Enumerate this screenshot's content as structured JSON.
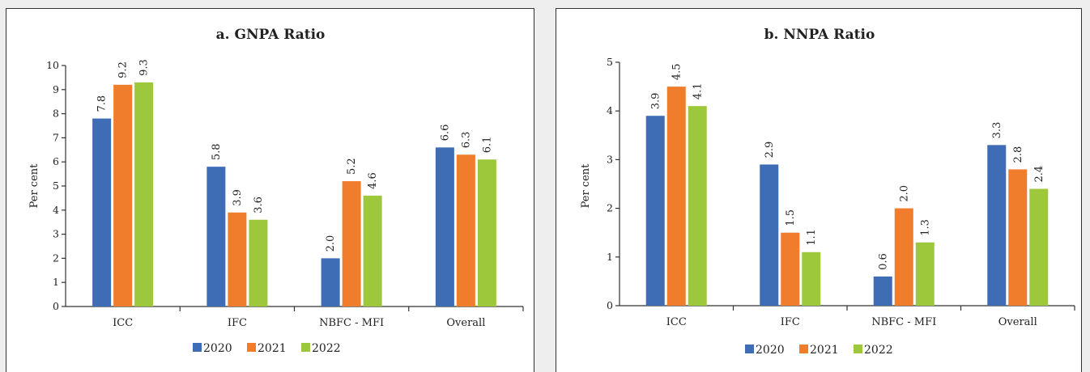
{
  "chart_data": [
    {
      "type": "bar",
      "title": "a. GNPA Ratio",
      "ylabel": "Per cent",
      "xlabel": "",
      "ylim": [
        0,
        10
      ],
      "yticks": [
        0,
        1,
        2,
        3,
        4,
        5,
        6,
        7,
        8,
        9,
        10
      ],
      "categories": [
        "ICC",
        "IFC",
        "NBFC - MFI",
        "Overall"
      ],
      "series": [
        {
          "name": "2020",
          "color": "#3e6db5",
          "values": [
            7.8,
            5.8,
            2.0,
            6.6
          ]
        },
        {
          "name": "2021",
          "color": "#ef7d2b",
          "values": [
            9.2,
            3.9,
            5.2,
            6.3
          ]
        },
        {
          "name": "2022",
          "color": "#9dc83c",
          "values": [
            9.3,
            3.6,
            4.6,
            6.1
          ]
        }
      ],
      "value_labels": true,
      "grid": false,
      "legend_position": "bottom"
    },
    {
      "type": "bar",
      "title": "b. NNPA Ratio",
      "ylabel": "Per cent",
      "xlabel": "",
      "ylim": [
        0,
        5
      ],
      "yticks": [
        0,
        1,
        2,
        3,
        4,
        5
      ],
      "categories": [
        "ICC",
        "IFC",
        "NBFC - MFI",
        "Overall"
      ],
      "series": [
        {
          "name": "2020",
          "color": "#3e6db5",
          "values": [
            3.9,
            2.9,
            0.6,
            3.3
          ]
        },
        {
          "name": "2021",
          "color": "#ef7d2b",
          "values": [
            4.5,
            1.5,
            2.0,
            2.8
          ]
        },
        {
          "name": "2022",
          "color": "#9dc83c",
          "values": [
            4.1,
            1.1,
            1.3,
            2.4
          ]
        }
      ],
      "value_labels": true,
      "grid": false,
      "legend_position": "bottom"
    }
  ]
}
